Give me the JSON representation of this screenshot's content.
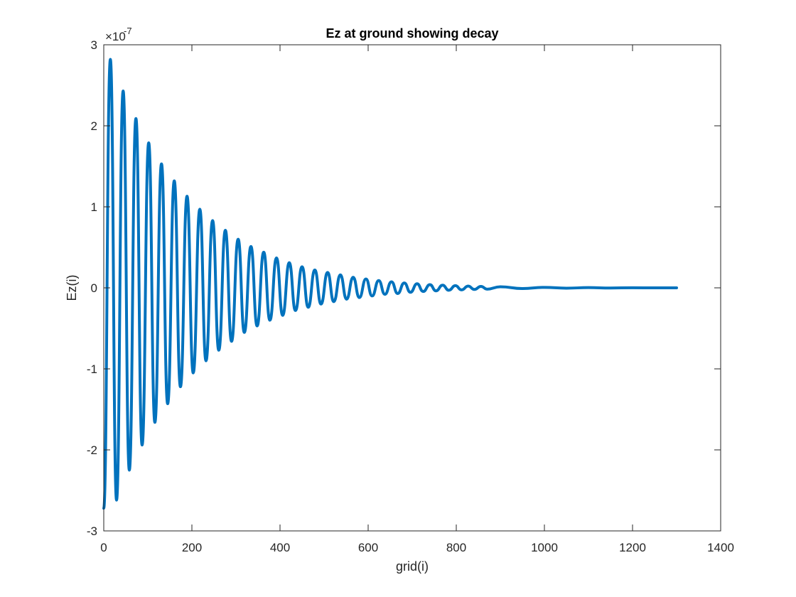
{
  "chart_data": {
    "type": "line",
    "title": "Ez at ground showing decay",
    "xlabel": "grid(i)",
    "ylabel": "Ez(i)",
    "xlim": [
      0,
      1400
    ],
    "ylim": [
      -3,
      3
    ],
    "y_multiplier_base": "×10",
    "y_multiplier_exponent": "-7",
    "xticks": [
      "0",
      "200",
      "400",
      "600",
      "800",
      "1000",
      "1200",
      "1400"
    ],
    "yticks": [
      "-3",
      "-2",
      "-1",
      "0",
      "1",
      "2",
      "3"
    ],
    "grid": false,
    "legend": "none",
    "series": [
      {
        "color": "#0072BD",
        "x": [
          0,
          15,
          29,
          44,
          58,
          73,
          87,
          102,
          116,
          131,
          145,
          160,
          174,
          189,
          203,
          218,
          232,
          247,
          261,
          276,
          290,
          305,
          319,
          334,
          348,
          363,
          377,
          392,
          406,
          421,
          435,
          450,
          464,
          479,
          493,
          508,
          522,
          537,
          551,
          566,
          580,
          595,
          609,
          624,
          638,
          653,
          667,
          682,
          696,
          711,
          725,
          740,
          754,
          769,
          783,
          798,
          812,
          827,
          841,
          856,
          870,
          900,
          950,
          1000,
          1050,
          1100,
          1150,
          1200,
          1250,
          1300
        ],
        "y": [
          -2.72,
          2.82,
          -2.62,
          2.43,
          -2.25,
          2.09,
          -1.94,
          1.79,
          -1.66,
          1.53,
          -1.43,
          1.32,
          -1.22,
          1.13,
          -1.05,
          0.97,
          -0.9,
          0.83,
          -0.77,
          0.71,
          -0.66,
          0.6,
          -0.55,
          0.51,
          -0.47,
          0.44,
          -0.4,
          0.37,
          -0.34,
          0.31,
          -0.28,
          0.26,
          -0.24,
          0.22,
          -0.2,
          0.19,
          -0.17,
          0.16,
          -0.14,
          0.13,
          -0.12,
          0.11,
          -0.1,
          0.09,
          -0.08,
          0.075,
          -0.07,
          0.06,
          -0.055,
          0.05,
          -0.045,
          0.04,
          -0.037,
          0.033,
          -0.03,
          0.027,
          -0.025,
          0.022,
          -0.02,
          0.018,
          -0.016,
          0.013,
          -0.009,
          0.006,
          -0.004,
          0.003,
          -0.002,
          0.001,
          0,
          0
        ]
      }
    ]
  }
}
